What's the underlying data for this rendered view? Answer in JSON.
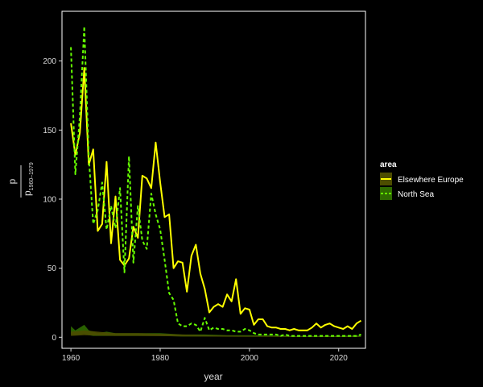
{
  "chart_data": {
    "type": "line",
    "xlabel": "year",
    "ylabel_main": "p",
    "ylabel_base": "p",
    "ylabel_sub": "1960–1979",
    "xlim": [
      1958,
      2026
    ],
    "ylim": [
      -8,
      236
    ],
    "x_ticks": [
      1960,
      1980,
      2000,
      2020
    ],
    "y_ticks": [
      0,
      50,
      100,
      150,
      200
    ],
    "grid": false,
    "legend": {
      "title": "area",
      "position": "right",
      "items": [
        "Elsewhere Europe",
        "North Sea"
      ]
    },
    "colors": {
      "Elsewhere Europe": "#ffff00",
      "North Sea": "#66ff00",
      "Elsewhere Europe ribbon": "#4d4d00",
      "North Sea ribbon": "#2e6b00"
    },
    "series": [
      {
        "name": "Elsewhere Europe",
        "style": "solid",
        "x": [
          1960,
          1961,
          1962,
          1963,
          1964,
          1965,
          1966,
          1967,
          1968,
          1969,
          1970,
          1971,
          1972,
          1973,
          1974,
          1975,
          1976,
          1977,
          1978,
          1979,
          1980,
          1981,
          1982,
          1983,
          1984,
          1985,
          1986,
          1987,
          1988,
          1989,
          1990,
          1991,
          1992,
          1993,
          1994,
          1995,
          1996,
          1997,
          1998,
          1999,
          2000,
          2001,
          2002,
          2003,
          2004,
          2005,
          2006,
          2007,
          2008,
          2009,
          2010,
          2011,
          2012,
          2013,
          2014,
          2015,
          2016,
          2017,
          2018,
          2019,
          2020,
          2021,
          2022,
          2023,
          2024,
          2025
        ],
        "y": [
          155,
          132,
          148,
          195,
          125,
          136,
          77,
          82,
          127,
          68,
          102,
          56,
          52,
          57,
          80,
          72,
          117,
          115,
          108,
          141,
          112,
          87,
          89,
          50,
          55,
          54,
          33,
          59,
          67,
          46,
          35,
          18,
          22,
          24,
          22,
          31,
          26,
          42,
          17,
          21,
          20,
          9,
          13,
          13,
          8,
          7,
          7,
          6,
          6,
          5,
          6,
          5,
          5,
          5,
          7,
          10,
          7,
          9,
          10,
          8,
          7,
          6,
          8,
          6,
          10,
          12
        ]
      },
      {
        "name": "North Sea",
        "style": "dashed",
        "x": [
          1960,
          1961,
          1962,
          1963,
          1964,
          1965,
          1966,
          1967,
          1968,
          1969,
          1970,
          1971,
          1972,
          1973,
          1974,
          1975,
          1976,
          1977,
          1978,
          1979,
          1980,
          1981,
          1982,
          1983,
          1984,
          1985,
          1986,
          1987,
          1988,
          1989,
          1990,
          1991,
          1992,
          1993,
          1994,
          1995,
          1996,
          1997,
          1998,
          1999,
          2000,
          2001,
          2002,
          2003,
          2004,
          2005,
          2006,
          2007,
          2008,
          2009,
          2010,
          2011,
          2012,
          2013,
          2014,
          2015,
          2016,
          2017,
          2018,
          2019,
          2020,
          2021,
          2022,
          2023,
          2024,
          2025
        ],
        "y": [
          210,
          118,
          160,
          225,
          131,
          82,
          92,
          112,
          78,
          95,
          79,
          108,
          47,
          131,
          54,
          95,
          70,
          64,
          104,
          89,
          78,
          56,
          32,
          27,
          10,
          8,
          8,
          10,
          9,
          4,
          14,
          5,
          7,
          6,
          6,
          5,
          5,
          4,
          4,
          6,
          5,
          3,
          2,
          2,
          2,
          2,
          2,
          1,
          2,
          1,
          1,
          1,
          1,
          1,
          1,
          1,
          1,
          1,
          1,
          1,
          1,
          1,
          1,
          1,
          1,
          2
        ]
      }
    ],
    "ribbons": [
      {
        "name": "North Sea",
        "x": [
          1960,
          1961,
          1962,
          1963,
          1964,
          1965,
          1966,
          1968,
          1970,
          1972,
          1974,
          1976,
          1978,
          1980,
          1985,
          1990,
          1995,
          2000,
          2005,
          2010,
          2015,
          2020,
          2025
        ],
        "upper": [
          8,
          5,
          7,
          9,
          5,
          4,
          3,
          4,
          3,
          3,
          3,
          3,
          3,
          3,
          2,
          2,
          1.5,
          1.5,
          1.5,
          1,
          1,
          1,
          1.5
        ],
        "lower": [
          2,
          1.5,
          2,
          2.5,
          1.5,
          1,
          1,
          1,
          1,
          1,
          1,
          1,
          1,
          1,
          0.5,
          0.5,
          0.5,
          0.5,
          0.5,
          0.2,
          0.2,
          0.2,
          0.3
        ]
      },
      {
        "name": "Elsewhere Europe",
        "x": [
          1960,
          1963,
          1966,
          1970,
          1975,
          1980,
          1985,
          1990,
          1995,
          2000,
          2005,
          2010,
          2015,
          2020,
          2025
        ],
        "upper": [
          4,
          5,
          4,
          3,
          3,
          2.5,
          2,
          1.5,
          1.2,
          1,
          0.8,
          0.6,
          0.6,
          0.5,
          0.6
        ],
        "lower": [
          1,
          1.5,
          1.2,
          1,
          1,
          0.8,
          0.6,
          0.5,
          0.4,
          0.3,
          0.3,
          0.2,
          0.2,
          0.2,
          0.2
        ]
      }
    ]
  }
}
